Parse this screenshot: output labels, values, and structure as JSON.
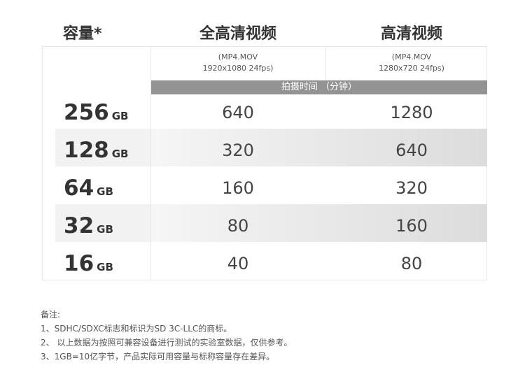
{
  "headers": {
    "capacity": "容量*",
    "full_hd": "全高清视频",
    "hd": "高清视频"
  },
  "formats": {
    "full_hd": [
      "(MP4.MOV",
      "1920x1080 24fps)"
    ],
    "hd": [
      "(MP4.MOV",
      "1280x720 24fps)"
    ]
  },
  "bar_label": "拍摄时间 （分钟）",
  "rows": [
    {
      "capacity": "256",
      "unit": "GB",
      "full_hd": "640",
      "hd": "1280"
    },
    {
      "capacity": "128",
      "unit": "GB",
      "full_hd": "320",
      "hd": "640"
    },
    {
      "capacity": "64",
      "unit": "GB",
      "full_hd": "160",
      "hd": "320"
    },
    {
      "capacity": "32",
      "unit": "GB",
      "full_hd": "80",
      "hd": "160"
    },
    {
      "capacity": "16",
      "unit": "GB",
      "full_hd": "40",
      "hd": "80"
    }
  ],
  "notes": [
    "备注:",
    "1、SDHC/SDXC标志和标识为SD 3C-LLC的商标。",
    "2、 以上数据为按照可兼容设备进行测试的实验室数据，仅供参考。",
    "3、1GB=10亿字节，产品实际可用容量与标称容量存在差异。"
  ]
}
